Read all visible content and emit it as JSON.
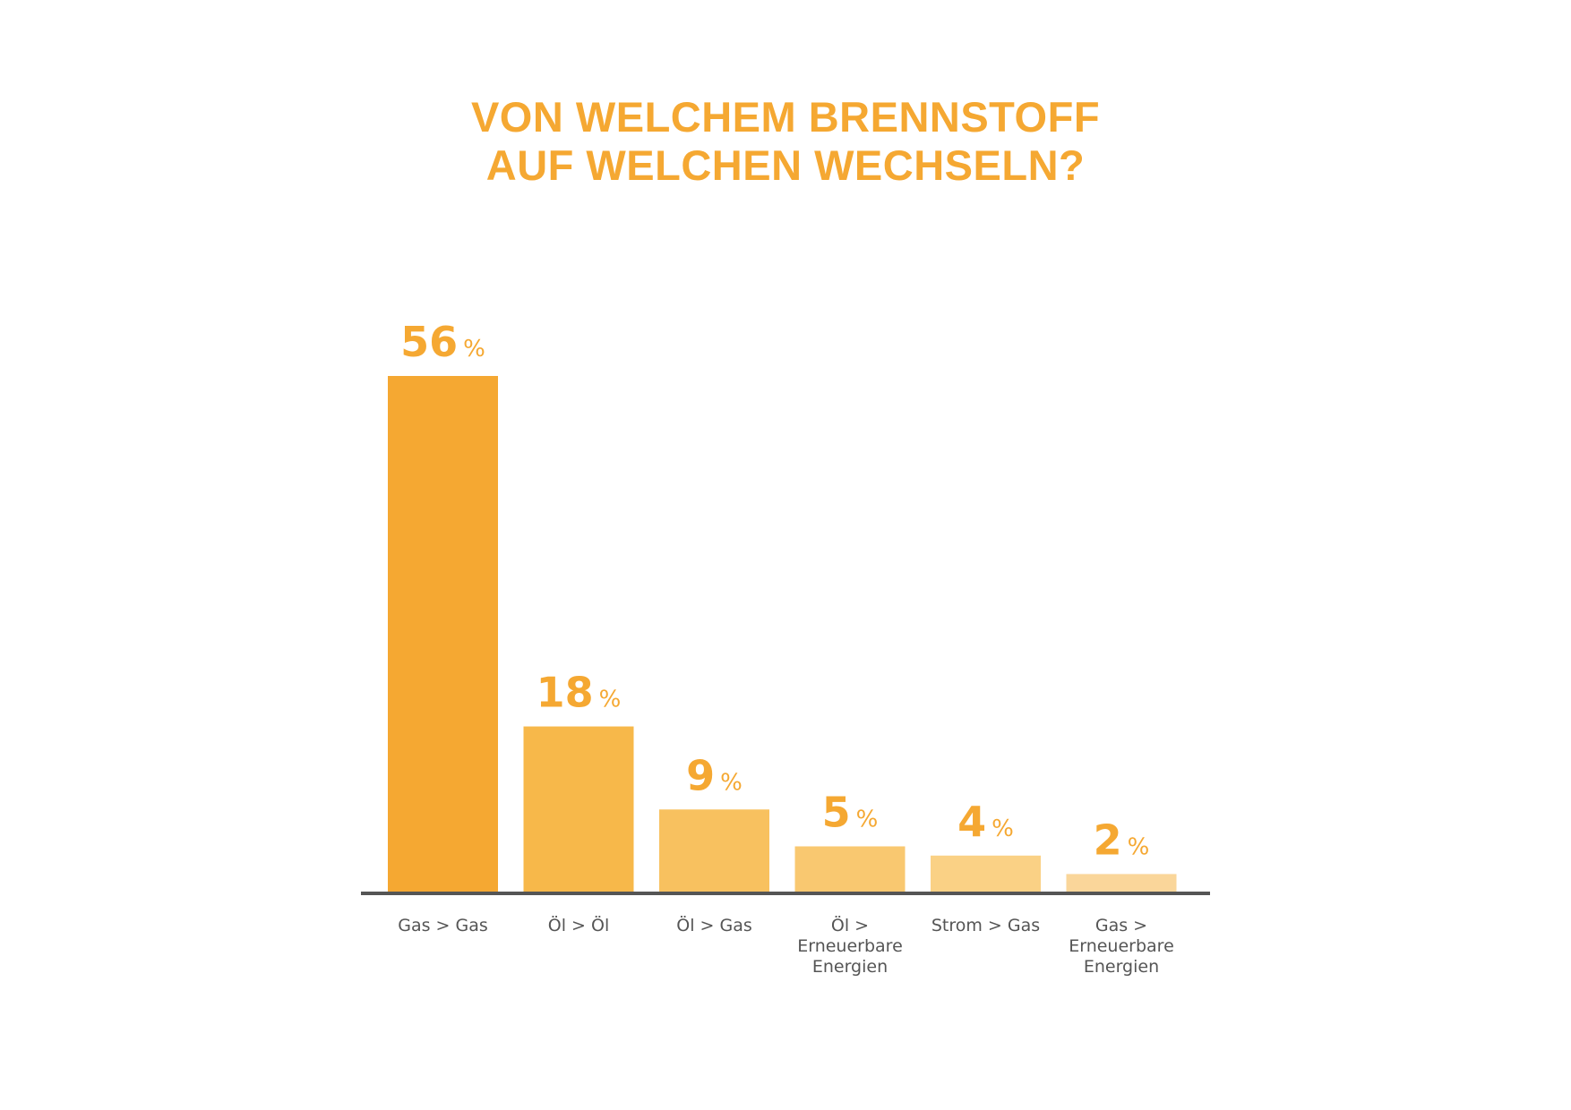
{
  "chart_data": {
    "type": "bar",
    "title": "VON WELCHEM BRENNSTOFF AUF WELCHEN WECHSELN?",
    "title_lines": [
      "VON WELCHEM BRENNSTOFF",
      "AUF WELCHEN WECHSELN?"
    ],
    "xlabel": "",
    "ylabel": "",
    "ylim": [
      0,
      56
    ],
    "grid": false,
    "legend": "none",
    "unit": "%",
    "categories": [
      [
        "Gas > Gas"
      ],
      [
        "Öl > Öl"
      ],
      [
        "Öl > Gas"
      ],
      [
        "Öl >",
        "Erneuerbare",
        "Energien"
      ],
      [
        "Strom > Gas"
      ],
      [
        "Gas >",
        "Erneuerbare",
        "Energien"
      ]
    ],
    "values": [
      56,
      18,
      9,
      5,
      4,
      2
    ],
    "colors": [
      "#F5A832",
      "#F7B84A",
      "#F8C15F",
      "#F9C870",
      "#FAD185",
      "#FAD69A"
    ],
    "label_color": "#F5A832",
    "axis_color": "#555555"
  }
}
